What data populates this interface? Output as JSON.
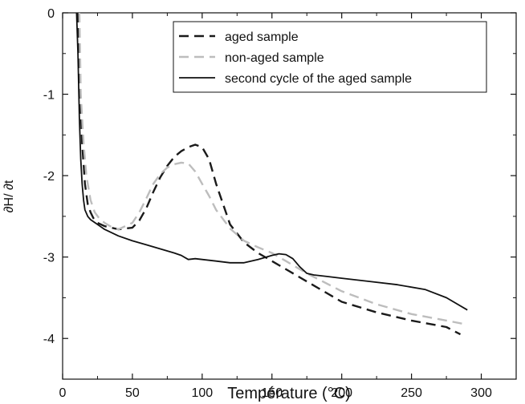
{
  "chart_data": {
    "type": "line",
    "xlabel": "Température (°C)",
    "ylabel": "∂H/ ∂t",
    "xlim": [
      0,
      325
    ],
    "ylim": [
      -4.5,
      0
    ],
    "xticks": [
      0,
      50,
      100,
      150,
      200,
      250,
      300
    ],
    "yticks": [
      0,
      -1,
      -2,
      -3,
      -4
    ],
    "x_tick_labels": [
      "0",
      "50",
      "100",
      "150",
      "200",
      "250",
      "300"
    ],
    "y_tick_labels": [
      "0",
      "-1",
      "-2",
      "-3",
      "-4"
    ],
    "grid": false,
    "legend_position": "top-right",
    "series": [
      {
        "name": "aged sample",
        "color": "#1a1a1a",
        "dash": "dashed",
        "x": [
          11,
          12,
          14,
          16,
          18,
          20,
          22,
          25,
          30,
          40,
          50,
          55,
          60,
          65,
          70,
          75,
          80,
          85,
          90,
          95,
          100,
          105,
          110,
          115,
          120,
          130,
          140,
          150,
          160,
          175,
          200,
          225,
          250,
          275,
          285
        ],
        "y": [
          0,
          -0.8,
          -1.6,
          -2.1,
          -2.35,
          -2.45,
          -2.52,
          -2.58,
          -2.62,
          -2.66,
          -2.64,
          -2.55,
          -2.4,
          -2.2,
          -2.02,
          -1.88,
          -1.77,
          -1.7,
          -1.65,
          -1.62,
          -1.65,
          -1.8,
          -2.1,
          -2.35,
          -2.6,
          -2.82,
          -2.95,
          -3.05,
          -3.15,
          -3.3,
          -3.55,
          -3.68,
          -3.78,
          -3.86,
          -3.95
        ]
      },
      {
        "name": "non-aged sample",
        "color": "#bdbdbd",
        "dash": "dashed",
        "x": [
          12,
          13,
          15,
          17,
          20,
          23,
          26,
          30,
          35,
          40,
          50,
          55,
          60,
          65,
          70,
          75,
          80,
          85,
          90,
          95,
          100,
          105,
          110,
          120,
          130,
          140,
          150,
          160,
          175,
          200,
          225,
          250,
          275,
          290
        ],
        "y": [
          0,
          -1.0,
          -1.6,
          -2.0,
          -2.3,
          -2.45,
          -2.52,
          -2.58,
          -2.63,
          -2.66,
          -2.58,
          -2.45,
          -2.28,
          -2.1,
          -1.98,
          -1.9,
          -1.86,
          -1.84,
          -1.85,
          -1.95,
          -2.1,
          -2.25,
          -2.42,
          -2.65,
          -2.8,
          -2.88,
          -2.95,
          -3.05,
          -3.2,
          -3.42,
          -3.58,
          -3.7,
          -3.78,
          -3.83
        ]
      },
      {
        "name": "second cycle of the aged sample",
        "color": "#111111",
        "dash": "solid",
        "x": [
          10,
          11,
          12,
          13,
          14,
          15,
          16,
          18,
          20,
          25,
          30,
          40,
          50,
          60,
          70,
          80,
          85,
          90,
          95,
          100,
          110,
          120,
          130,
          140,
          150,
          155,
          160,
          165,
          170,
          175,
          180,
          190,
          200,
          220,
          240,
          260,
          275,
          290
        ],
        "y": [
          0,
          -0.5,
          -1.3,
          -1.8,
          -2.1,
          -2.3,
          -2.42,
          -2.5,
          -2.54,
          -2.6,
          -2.66,
          -2.74,
          -2.8,
          -2.85,
          -2.9,
          -2.95,
          -2.98,
          -3.03,
          -3.02,
          -3.03,
          -3.05,
          -3.07,
          -3.07,
          -3.03,
          -2.98,
          -2.96,
          -2.97,
          -3.02,
          -3.12,
          -3.2,
          -3.22,
          -3.24,
          -3.26,
          -3.3,
          -3.34,
          -3.4,
          -3.5,
          -3.65
        ]
      }
    ]
  }
}
